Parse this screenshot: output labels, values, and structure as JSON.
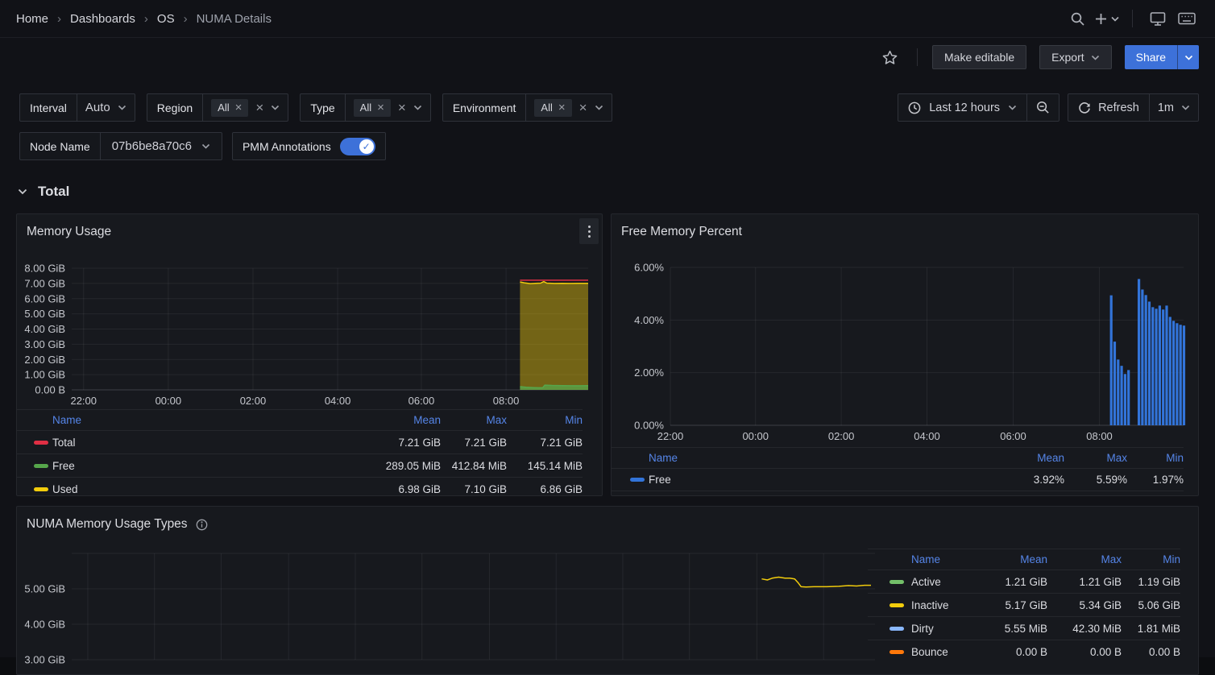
{
  "colors": {
    "primary": "#3d71d9",
    "legend_header": "#5585e8",
    "grid": "rgba(204,204,220,0.08)",
    "axis_text": "#c5c7cd"
  },
  "nav": {
    "breadcrumb": [
      "Home",
      "Dashboards",
      "OS",
      "NUMA Details"
    ]
  },
  "toolbar": {
    "make_editable": "Make editable",
    "export": "Export",
    "share": "Share"
  },
  "filters": {
    "interval": {
      "label": "Interval",
      "value": "Auto"
    },
    "region": {
      "label": "Region",
      "selected": "All"
    },
    "type": {
      "label": "Type",
      "selected": "All"
    },
    "environment": {
      "label": "Environment",
      "selected": "All"
    },
    "node_name": {
      "label": "Node Name",
      "value": "07b6be8a70c6"
    },
    "pmm_annotations": {
      "label": "PMM Annotations",
      "enabled": true
    },
    "time_range": "Last 12 hours",
    "refresh_label": "Refresh",
    "refresh_interval": "1m"
  },
  "section": {
    "title": "Total"
  },
  "panels": {
    "memory_usage": {
      "title": "Memory Usage",
      "legend": {
        "headers": [
          "Name",
          "Mean",
          "Max",
          "Min"
        ],
        "rows": [
          {
            "name": "Total",
            "color": "#e02f44",
            "mean": "7.21 GiB",
            "max": "7.21 GiB",
            "min": "7.21 GiB"
          },
          {
            "name": "Free",
            "color": "#56a64b",
            "mean": "289.05 MiB",
            "max": "412.84 MiB",
            "min": "145.14 MiB"
          },
          {
            "name": "Used",
            "color": "#f2cc0c",
            "mean": "6.98 GiB",
            "max": "7.10 GiB",
            "min": "6.86 GiB"
          }
        ]
      }
    },
    "free_memory_percent": {
      "title": "Free Memory Percent",
      "legend": {
        "headers": [
          "Name",
          "Mean",
          "Max",
          "Min"
        ],
        "rows": [
          {
            "name": "Free",
            "color": "#3274d9",
            "mean": "3.92%",
            "max": "5.59%",
            "min": "1.97%"
          }
        ]
      }
    },
    "numa_types": {
      "title": "NUMA Memory Usage Types",
      "legend": {
        "headers": [
          "Name",
          "Mean",
          "Max",
          "Min"
        ],
        "rows": [
          {
            "name": "Active",
            "color": "#73bf69",
            "mean": "1.21 GiB",
            "max": "1.21 GiB",
            "min": "1.19 GiB"
          },
          {
            "name": "Inactive",
            "color": "#f2cc0c",
            "mean": "5.17 GiB",
            "max": "5.34 GiB",
            "min": "5.06 GiB"
          },
          {
            "name": "Dirty",
            "color": "#8ab8ff",
            "mean": "5.55 MiB",
            "max": "42.30 MiB",
            "min": "1.81 MiB"
          },
          {
            "name": "Bounce",
            "color": "#ff780a",
            "mean": "0.00 B",
            "max": "0.00 B",
            "min": "0.00 B"
          }
        ]
      }
    }
  },
  "chart_data": [
    {
      "type": "area",
      "title": "Memory Usage",
      "ylabel_unit": "GiB",
      "ylim": [
        0,
        8
      ],
      "baseline": true,
      "yticks": [
        {
          "v": 8,
          "label": "8.00 GiB"
        },
        {
          "v": 7,
          "label": "7.00 GiB"
        },
        {
          "v": 6,
          "label": "6.00 GiB"
        },
        {
          "v": 5,
          "label": "5.00 GiB"
        },
        {
          "v": 4,
          "label": "4.00 GiB"
        },
        {
          "v": 3,
          "label": "3.00 GiB"
        },
        {
          "v": 2,
          "label": "2.00 GiB"
        },
        {
          "v": 1,
          "label": "1.00 GiB"
        },
        {
          "v": 0,
          "label": "0.00 B"
        }
      ],
      "xticks": [
        {
          "f": 0.023,
          "label": "22:00"
        },
        {
          "f": 0.187,
          "label": "00:00"
        },
        {
          "f": 0.351,
          "label": "02:00"
        },
        {
          "f": 0.515,
          "label": "04:00"
        },
        {
          "f": 0.677,
          "label": "06:00"
        },
        {
          "f": 0.841,
          "label": "08:00"
        }
      ],
      "xgrid": [
        0.023,
        0.187,
        0.351,
        0.515,
        0.677,
        0.841
      ],
      "series": [
        {
          "name": "Used",
          "style": "area",
          "color": "#f2cc0c",
          "fill": "rgba(242,204,12,0.42)",
          "points": [
            [
              0.868,
              7.1
            ],
            [
              0.878,
              7.03
            ],
            [
              0.888,
              6.99
            ],
            [
              0.898,
              7.01
            ],
            [
              0.908,
              7.02
            ],
            [
              0.914,
              7.12
            ],
            [
              0.92,
              7.02
            ],
            [
              0.935,
              7.0
            ],
            [
              0.95,
              7.01
            ],
            [
              0.965,
              7.0
            ],
            [
              0.98,
              7.01
            ],
            [
              1,
              7.01
            ]
          ]
        },
        {
          "name": "Free",
          "style": "area",
          "color": "#56a64b",
          "fill": "rgba(86,166,75,0.75)",
          "points": [
            [
              0.868,
              0.21
            ],
            [
              0.88,
              0.17
            ],
            [
              0.895,
              0.15
            ],
            [
              0.905,
              0.14
            ],
            [
              0.912,
              0.14
            ],
            [
              0.916,
              0.31
            ],
            [
              0.93,
              0.29
            ],
            [
              0.95,
              0.28
            ],
            [
              0.97,
              0.27
            ],
            [
              0.985,
              0.27
            ],
            [
              1,
              0.28
            ]
          ]
        },
        {
          "name": "Total",
          "style": "line",
          "color": "#e02f44",
          "points": [
            [
              0.868,
              7.21
            ],
            [
              1,
              7.21
            ]
          ]
        }
      ]
    },
    {
      "type": "bar",
      "title": "Free Memory Percent",
      "ylabel_unit": "%",
      "ylim": [
        0,
        6
      ],
      "baseline": true,
      "yticks": [
        {
          "v": 6,
          "label": "6.00%"
        },
        {
          "v": 4,
          "label": "4.00%"
        },
        {
          "v": 2,
          "label": "2.00%"
        },
        {
          "v": 0,
          "label": "0.00%"
        }
      ],
      "xticks": [
        {
          "f": 0.0,
          "label": "22:00"
        },
        {
          "f": 0.166,
          "label": "00:00"
        },
        {
          "f": 0.333,
          "label": "02:00"
        },
        {
          "f": 0.5,
          "label": "04:00"
        },
        {
          "f": 0.668,
          "label": "06:00"
        },
        {
          "f": 0.836,
          "label": "08:00"
        }
      ],
      "xgrid": [
        0.0,
        0.166,
        0.333,
        0.5,
        0.668,
        0.836
      ],
      "bars": {
        "color": "#3274d9",
        "start": 0.859,
        "pitch": 0.00675,
        "values": [
          4.94,
          3.18,
          2.5,
          2.26,
          1.95,
          2.1,
          null,
          null,
          5.56,
          5.16,
          4.95,
          4.7,
          4.49,
          4.43,
          4.55,
          4.4,
          4.55,
          4.12,
          3.97,
          3.88,
          3.82,
          3.79
        ]
      }
    },
    {
      "type": "line",
      "title": "NUMA Memory Usage Types",
      "ylabel_unit": "GiB",
      "ylim": [
        3,
        6
      ],
      "baseline": false,
      "yticks": [
        {
          "v": 6,
          "label": null
        },
        {
          "v": 5,
          "label": "5.00 GiB"
        },
        {
          "v": 4,
          "label": "4.00 GiB"
        },
        {
          "v": 3,
          "label": "3.00 GiB"
        }
      ],
      "xgrid": [
        0.02,
        0.103,
        0.186,
        0.27,
        0.353,
        0.436,
        0.52,
        0.603,
        0.686,
        0.769,
        0.853,
        0.936
      ],
      "series": [
        {
          "name": "Inactive",
          "style": "line",
          "color": "#f2cc0c",
          "points": [
            [
              0.859,
              5.28
            ],
            [
              0.866,
              5.25
            ],
            [
              0.872,
              5.3
            ],
            [
              0.88,
              5.33
            ],
            [
              0.888,
              5.3
            ],
            [
              0.894,
              5.3
            ],
            [
              0.9,
              5.28
            ],
            [
              0.904,
              5.18
            ],
            [
              0.908,
              5.06
            ],
            [
              0.914,
              5.05
            ],
            [
              0.924,
              5.06
            ],
            [
              0.94,
              5.06
            ],
            [
              0.955,
              5.07
            ],
            [
              0.967,
              5.09
            ],
            [
              0.977,
              5.08
            ],
            [
              0.987,
              5.1
            ],
            [
              0.995,
              5.1
            ]
          ]
        }
      ]
    }
  ]
}
